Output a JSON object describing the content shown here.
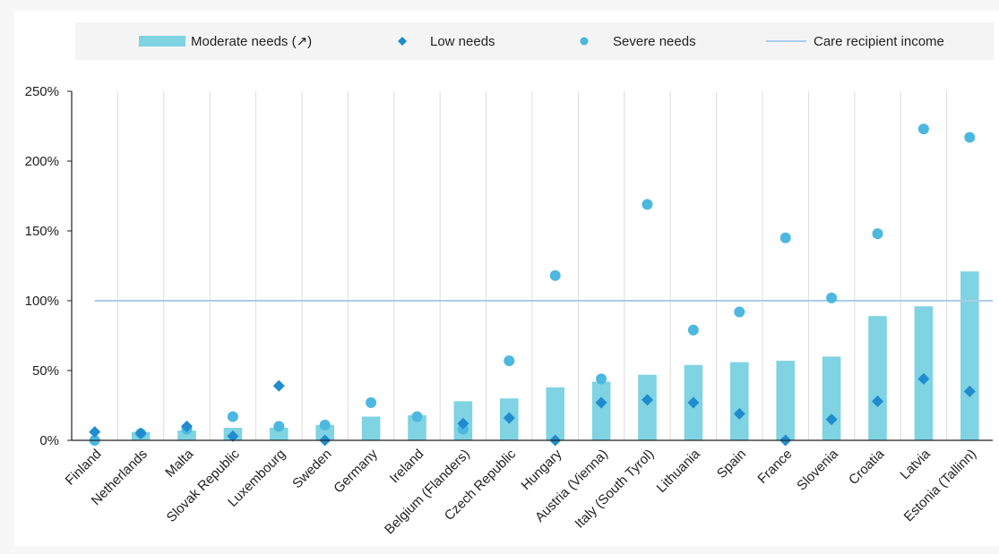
{
  "chart_data": {
    "type": "bar",
    "categories": [
      "Finland",
      "Netherlands",
      "Malta",
      "Slovak Republic",
      "Luxembourg",
      "Sweden",
      "Germany",
      "Ireland",
      "Belgium (Flanders)",
      "Czech Republic",
      "Hungary",
      "Austria (Vienna)",
      "Italy (South Tyrol)",
      "Lithuania",
      "Spain",
      "France",
      "Slovenia",
      "Croatia",
      "Latvia",
      "Estonia (Tallinn)"
    ],
    "series": [
      {
        "name": "Moderate needs (↗)",
        "kind": "bar",
        "color": "#7fd3e2",
        "values": [
          0,
          6,
          7,
          9,
          9,
          11,
          17,
          18,
          28,
          30,
          38,
          42,
          47,
          54,
          56,
          57,
          60,
          89,
          96,
          121
        ]
      },
      {
        "name": "Low needs",
        "kind": "diamond",
        "color": "#1f8ccf",
        "values": [
          6,
          5,
          10,
          3,
          39,
          0,
          null,
          null,
          12,
          16,
          0,
          27,
          29,
          27,
          19,
          0,
          15,
          28,
          44,
          35
        ]
      },
      {
        "name": "Severe needs",
        "kind": "circle",
        "color": "#4cb8e0",
        "values": [
          0,
          5,
          8,
          17,
          10,
          11,
          27,
          17,
          8,
          57,
          118,
          44,
          169,
          79,
          92,
          145,
          102,
          148,
          223,
          217
        ]
      },
      {
        "name": "Care recipient income",
        "kind": "line",
        "color": "#a9cdeb",
        "value": 100
      }
    ],
    "y_ticks": [
      "0%",
      "50%",
      "100%",
      "150%",
      "200%",
      "250%"
    ],
    "ylim": [
      0,
      250
    ],
    "xlabel": "",
    "ylabel": "",
    "legend_position": "top",
    "grid": "vertical"
  }
}
